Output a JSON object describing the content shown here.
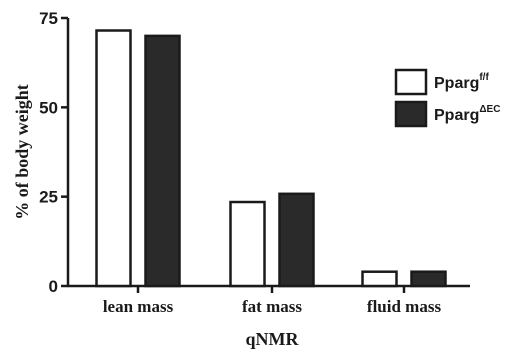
{
  "chart_data": {
    "type": "bar",
    "title": "",
    "xlabel": "qNMR",
    "ylabel": "% of body weight",
    "categories": [
      "lean mass",
      "fat mass",
      "fluid mass"
    ],
    "ylim": [
      0,
      75
    ],
    "yticks": [
      "0",
      "25",
      "50",
      "75"
    ],
    "legend_position": "top-right",
    "series": [
      {
        "name": "Pparg",
        "name_sup": "f/f",
        "fill": "#ffffff",
        "values": [
          71.5,
          23.5,
          4.0
        ]
      },
      {
        "name": "Pparg",
        "name_sup": "ΔEC",
        "fill": "#2a2a2a",
        "values": [
          70.0,
          25.8,
          4.0
        ]
      }
    ]
  }
}
